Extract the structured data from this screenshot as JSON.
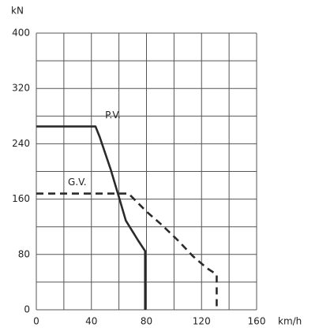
{
  "chart_data": {
    "type": "line",
    "y_label": "kN",
    "x_label": "km/h",
    "xlim": [
      0,
      160
    ],
    "ylim": [
      0,
      400
    ],
    "xticks": [
      0,
      40,
      80,
      120,
      160
    ],
    "yticks": [
      0,
      80,
      160,
      240,
      320,
      400
    ],
    "xgrid": [
      0,
      20,
      40,
      60,
      80,
      100,
      120,
      140,
      160
    ],
    "ygrid": [
      0,
      40,
      80,
      120,
      160,
      200,
      240,
      280,
      320,
      360,
      400
    ],
    "grid": true,
    "series": [
      {
        "name": "P.V.",
        "color": "#2a2a2a",
        "dashed": false,
        "x": [
          0,
          43,
          46,
          54,
          60,
          65,
          74,
          79,
          79
        ],
        "values": [
          265,
          265,
          250,
          203,
          163,
          129,
          100,
          85,
          0
        ]
      },
      {
        "name": "G.V.",
        "color": "#2a2a2a",
        "dashed": true,
        "x": [
          0,
          67,
          80,
          91,
          103,
          114,
          124,
          131,
          131
        ],
        "values": [
          168,
          168,
          142,
          123,
          100,
          77,
          60,
          51,
          0
        ]
      }
    ]
  }
}
